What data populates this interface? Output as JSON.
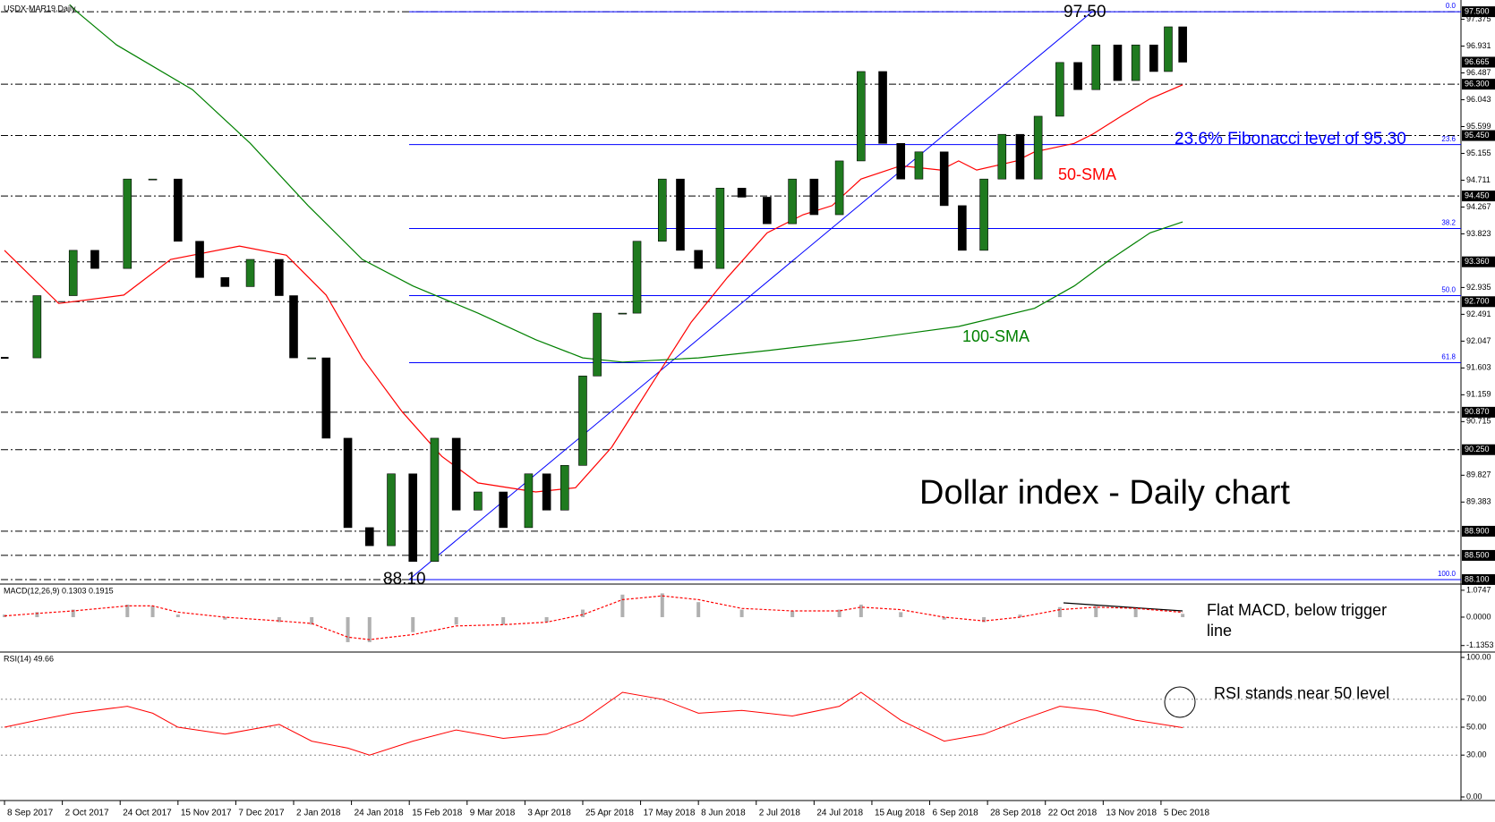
{
  "chart_data": [
    {
      "type": "candlestick",
      "title": "USDX-MAR19,Daily",
      "up_color": "#1f7a1f",
      "down_color": "#000000",
      "x": [
        0,
        9,
        19,
        25,
        34,
        41,
        48,
        54,
        61,
        68,
        76,
        80,
        85,
        89,
        95,
        101,
        107,
        113,
        119,
        125,
        131,
        138,
        145,
        150,
        155,
        160,
        164,
        171,
        175,
        182,
        187,
        192,
        198,
        204,
        211,
        218,
        224,
        231,
        237,
        243,
        248,
        253,
        260,
        265,
        271,
        276,
        281,
        286,
        292,
        297,
        302,
        308,
        313,
        318,
        322,
        326
      ],
      "values": [
        91.77,
        92.8,
        93.55,
        93.25,
        94.73,
        94.73,
        93.7,
        93.1,
        92.95,
        93.4,
        92.8,
        91.77,
        91.77,
        90.44,
        88.96,
        88.66,
        89.85,
        88.4,
        90.44,
        89.25,
        89.55,
        88.96,
        89.85,
        89.25,
        89.99,
        91.47,
        92.51,
        92.51,
        93.7,
        94.73,
        93.55,
        93.25,
        94.58,
        94.43,
        93.99,
        94.73,
        94.14,
        95.03,
        96.51,
        95.32,
        94.73,
        95.18,
        94.29,
        93.55,
        94.73,
        95.47,
        94.73,
        95.77,
        96.66,
        96.21,
        96.95,
        96.36,
        96.95,
        96.51,
        97.25,
        96.665
      ],
      "xlim": [
        -1,
        403
      ],
      "xticks": [
        {
          "value": 0,
          "label": "8 Sep 2017"
        },
        {
          "value": 16,
          "label": "2 Oct 2017"
        },
        {
          "value": 32,
          "label": "24 Oct 2017"
        },
        {
          "value": 48,
          "label": "15 Nov 2017"
        },
        {
          "value": 64,
          "label": "7 Dec 2017"
        },
        {
          "value": 80,
          "label": "2 Jan 2018"
        },
        {
          "value": 96,
          "label": "24 Jan 2018"
        },
        {
          "value": 112,
          "label": "15 Feb 2018"
        },
        {
          "value": 128,
          "label": "9 Mar 2018"
        },
        {
          "value": 144,
          "label": "3 Apr 2018"
        },
        {
          "value": 160,
          "label": "25 Apr 2018"
        },
        {
          "value": 176,
          "label": "17 May 2018"
        },
        {
          "value": 192,
          "label": "8 Jun 2018"
        },
        {
          "value": 208,
          "label": "2 Jul 2018"
        },
        {
          "value": 224,
          "label": "24 Jul 2018"
        },
        {
          "value": 240,
          "label": "15 Aug 2018"
        },
        {
          "value": 256,
          "label": "6 Sep 2018"
        },
        {
          "value": 272,
          "label": "28 Sep 2018"
        },
        {
          "value": 288,
          "label": "22 Oct 2018"
        },
        {
          "value": 304,
          "label": "13 Nov 2018"
        },
        {
          "value": 320,
          "label": "5 Dec 2018"
        }
      ],
      "ylim": [
        88.04,
        97.62
      ],
      "yticks": [
        97.375,
        96.931,
        96.487,
        96.043,
        95.599,
        95.155,
        94.711,
        94.267,
        93.823,
        92.935,
        92.491,
        92.047,
        91.603,
        91.159,
        90.715,
        89.827,
        89.383
      ],
      "levels": [
        {
          "value": 97.5,
          "label": "97.500"
        },
        {
          "value": 96.3,
          "label": "96.300"
        },
        {
          "value": 95.45,
          "label": "95.450"
        },
        {
          "value": 94.45,
          "label": "94.450"
        },
        {
          "value": 93.36,
          "label": "93.360"
        },
        {
          "value": 92.7,
          "label": "92.700"
        },
        {
          "value": 90.87,
          "label": "90.870"
        },
        {
          "value": 90.25,
          "label": "90.250"
        },
        {
          "value": 88.9,
          "label": "88.900"
        },
        {
          "value": 88.5,
          "label": "88.500"
        },
        {
          "value": 88.1,
          "label": "88.100"
        }
      ],
      "current_price": 96.665,
      "fib_color": "#0000ff",
      "fib_levels": [
        {
          "value": 97.5,
          "label": "0.0"
        },
        {
          "value": 95.3,
          "label": "23.6"
        },
        {
          "value": 93.91,
          "label": "38.2"
        },
        {
          "value": 92.8,
          "label": "50.0"
        },
        {
          "value": 91.69,
          "label": "61.8"
        },
        {
          "value": 88.1,
          "label": "100.0"
        }
      ],
      "series": [
        {
          "name": "50-SMA",
          "color": "#ff0000",
          "x": [
            0,
            15,
            33,
            46,
            65,
            78,
            89,
            99,
            110,
            121,
            131,
            147,
            158,
            168,
            179,
            190,
            200,
            211,
            221,
            229,
            237,
            248,
            259,
            264,
            269,
            280,
            285,
            296,
            301,
            309,
            317,
            326
          ],
          "values": [
            93.55,
            92.67,
            92.81,
            93.4,
            93.62,
            93.47,
            92.81,
            91.77,
            90.88,
            90.14,
            89.7,
            89.55,
            89.62,
            90.29,
            91.33,
            92.36,
            93.1,
            93.84,
            94.14,
            94.29,
            94.73,
            94.95,
            94.88,
            95.03,
            94.88,
            95.03,
            95.18,
            95.32,
            95.47,
            95.77,
            96.06,
            96.29
          ]
        },
        {
          "name": "100-SMA",
          "color": "#008000",
          "x": [
            18,
            20,
            31,
            52,
            68,
            84,
            99,
            113,
            131,
            147,
            160,
            171,
            192,
            211,
            237,
            264,
            285,
            296,
            306,
            317,
            326
          ],
          "values": [
            97.62,
            97.5,
            96.95,
            96.21,
            95.32,
            94.29,
            93.4,
            92.96,
            92.51,
            92.07,
            91.77,
            91.7,
            91.77,
            91.89,
            92.07,
            92.29,
            92.59,
            92.96,
            93.4,
            93.84,
            94.02
          ]
        }
      ],
      "annotations": [
        "97.50",
        "88.10",
        "23.6% Fibonacci level of 95.30",
        "Dollar index - Daily chart"
      ]
    },
    {
      "type": "macd",
      "title": "MACD(12,26,9) 0.1303 0.1915",
      "xlim": [
        -1,
        403
      ],
      "ylim": [
        -1.36,
        1.25
      ],
      "yticks": [
        1.0747,
        {
          "value": 0,
          "label": "0.0000"
        },
        -1.1353
      ],
      "x": [
        0,
        9,
        19,
        34,
        41,
        48,
        61,
        76,
        85,
        95,
        101,
        113,
        125,
        138,
        150,
        160,
        171,
        182,
        192,
        204,
        218,
        231,
        237,
        248,
        260,
        271,
        281,
        292,
        302,
        313,
        326
      ],
      "values": [
        0.1,
        0.2,
        0.3,
        0.5,
        0.45,
        0.1,
        -0.1,
        -0.2,
        -0.3,
        -1.0,
        -1.0,
        -0.6,
        -0.3,
        -0.3,
        -0.2,
        0.3,
        0.9,
        0.95,
        0.6,
        0.3,
        0.25,
        0.3,
        0.5,
        0.2,
        -0.1,
        -0.2,
        0.1,
        0.4,
        0.45,
        0.35,
        0.1303
      ],
      "color": "#b0b0b0",
      "series": [
        {
          "name": "Signal",
          "color": "#ff0000",
          "x": [
            0,
            9,
            19,
            34,
            41,
            48,
            61,
            76,
            85,
            95,
            101,
            113,
            125,
            138,
            150,
            160,
            171,
            182,
            192,
            204,
            218,
            231,
            237,
            248,
            260,
            271,
            281,
            292,
            302,
            313,
            326
          ],
          "values": [
            0.05,
            0.15,
            0.25,
            0.45,
            0.45,
            0.2,
            0.0,
            -0.15,
            -0.25,
            -0.8,
            -0.9,
            -0.7,
            -0.35,
            -0.3,
            -0.2,
            0.1,
            0.7,
            0.85,
            0.7,
            0.35,
            0.25,
            0.25,
            0.4,
            0.3,
            0.0,
            -0.15,
            0.0,
            0.3,
            0.4,
            0.35,
            0.1915
          ]
        }
      ],
      "annotation": [
        "Flat MACD, below trigger",
        "line"
      ]
    },
    {
      "type": "rsi",
      "title": "RSI(14) 49.66",
      "xlim": [
        -1,
        403
      ],
      "ylim": [
        0,
        100
      ],
      "yticks": [
        {
          "value": 100,
          "label": "100.00"
        },
        {
          "value": 70,
          "label": "70.00"
        },
        {
          "value": 50,
          "label": "50.00"
        },
        {
          "value": 30,
          "label": "30.00"
        },
        {
          "value": 0,
          "label": "0.00"
        }
      ],
      "color": "#ff0000",
      "x": [
        0,
        9,
        19,
        34,
        41,
        48,
        61,
        76,
        85,
        95,
        101,
        113,
        125,
        138,
        150,
        160,
        171,
        182,
        192,
        204,
        218,
        231,
        237,
        248,
        260,
        271,
        281,
        292,
        302,
        313,
        326
      ],
      "values": [
        50,
        55,
        60,
        65,
        60,
        50,
        45,
        52,
        40,
        35,
        30,
        40,
        48,
        42,
        45,
        55,
        75,
        70,
        60,
        62,
        58,
        65,
        75,
        55,
        40,
        45,
        55,
        65,
        62,
        55,
        49.66
      ],
      "annotation": "RSI stands near 50 level"
    }
  ]
}
